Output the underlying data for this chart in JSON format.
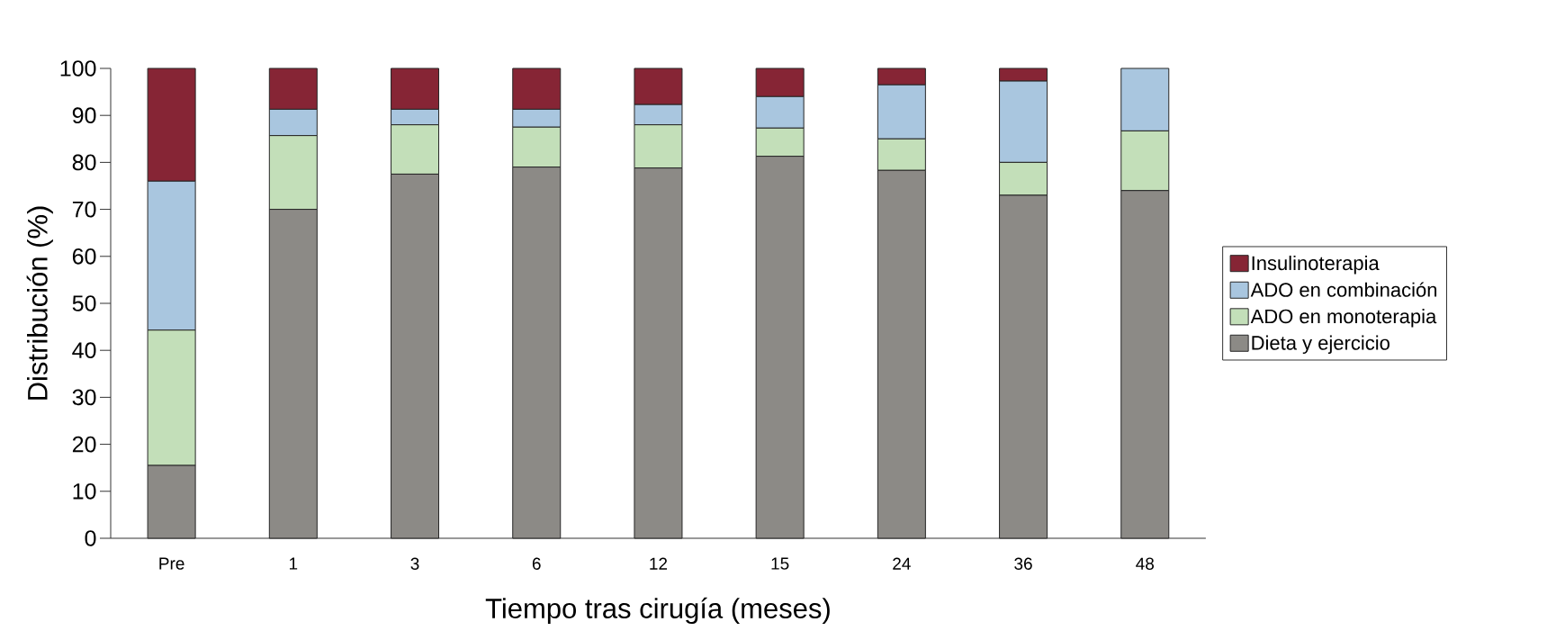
{
  "chart_data": {
    "type": "bar",
    "stacked": true,
    "xlabel": "Tiempo tras cirugía (meses)",
    "ylabel": "Distribución (%)",
    "categories": [
      "Pre",
      "1",
      "3",
      "6",
      "12",
      "15",
      "24",
      "36",
      "48"
    ],
    "series": [
      {
        "name": "Dieta y ejercicio",
        "color": "#8c8a86",
        "values": [
          15.5,
          70,
          77.5,
          79,
          78.8,
          81.3,
          78.3,
          73,
          74
        ]
      },
      {
        "name": "ADO en monoterapia",
        "color": "#c3dfb9",
        "values": [
          28.8,
          15.7,
          10.5,
          8.5,
          9.2,
          6,
          6.7,
          7,
          12.7
        ]
      },
      {
        "name": "ADO en combinación",
        "color": "#a9c6df",
        "values": [
          31.7,
          5.6,
          3.3,
          3.8,
          4.3,
          6.7,
          11.5,
          17.3,
          13.3
        ]
      },
      {
        "name": "Insulinoterapia",
        "color": "#862535",
        "values": [
          24,
          8.7,
          8.7,
          8.7,
          7.7,
          6,
          3.5,
          2.7,
          0
        ]
      }
    ],
    "ylim": [
      0,
      100
    ],
    "yticks": [
      0,
      10,
      20,
      30,
      40,
      50,
      60,
      70,
      80,
      90,
      100
    ],
    "legend": "right"
  }
}
